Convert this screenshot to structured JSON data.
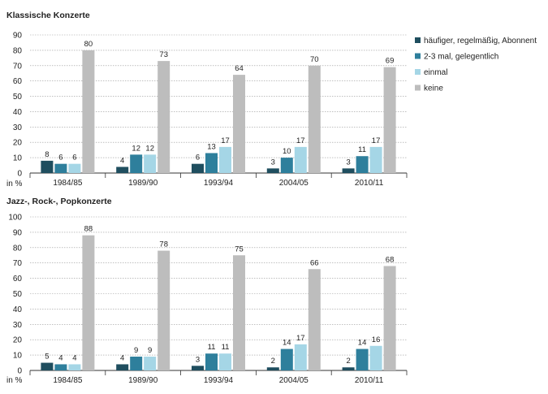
{
  "legend": [
    {
      "name": "häufiger, regelmäßig, Abonnent",
      "color": "#1f4e5f"
    },
    {
      "name": "2-3 mal, gelegentlich",
      "color": "#2e7f9c"
    },
    {
      "name": "einmal",
      "color": "#a5d6e6"
    },
    {
      "name": "keine",
      "color": "#bdbdbd"
    }
  ],
  "chart_data": [
    {
      "type": "bar",
      "title": "Klassische Konzerte",
      "ylabel": "in %",
      "ylim": [
        0,
        90
      ],
      "yticks": [
        0,
        10,
        20,
        30,
        40,
        50,
        60,
        70,
        80,
        90
      ],
      "grid": "horizontal dashed",
      "legend_placement": "right",
      "categories": [
        "1984/85",
        "1989/90",
        "1993/94",
        "2004/05",
        "2010/11"
      ],
      "series": [
        {
          "name": "häufiger, regelmäßig, Abonnent",
          "values": [
            8,
            4,
            6,
            3,
            3
          ]
        },
        {
          "name": "2-3 mal, gelegentlich",
          "values": [
            6,
            12,
            13,
            10,
            11
          ]
        },
        {
          "name": "einmal",
          "values": [
            6,
            12,
            17,
            17,
            17
          ]
        },
        {
          "name": "keine",
          "values": [
            80,
            73,
            64,
            70,
            69
          ]
        }
      ]
    },
    {
      "type": "bar",
      "title": "Jazz-, Rock-, Popkonzerte",
      "ylabel": "in %",
      "ylim": [
        0,
        100
      ],
      "yticks": [
        0,
        10,
        20,
        30,
        40,
        50,
        60,
        70,
        80,
        90,
        100
      ],
      "grid": "horizontal dashed",
      "categories": [
        "1984/85",
        "1989/90",
        "1993/94",
        "2004/05",
        "2010/11"
      ],
      "series": [
        {
          "name": "häufiger, regelmäßig, Abonnent",
          "values": [
            5,
            4,
            3,
            2,
            2
          ]
        },
        {
          "name": "2-3 mal, gelegentlich",
          "values": [
            4,
            9,
            11,
            14,
            14
          ]
        },
        {
          "name": "einmal",
          "values": [
            4,
            9,
            11,
            17,
            16
          ]
        },
        {
          "name": "keine",
          "values": [
            88,
            78,
            75,
            66,
            68
          ]
        }
      ]
    }
  ]
}
